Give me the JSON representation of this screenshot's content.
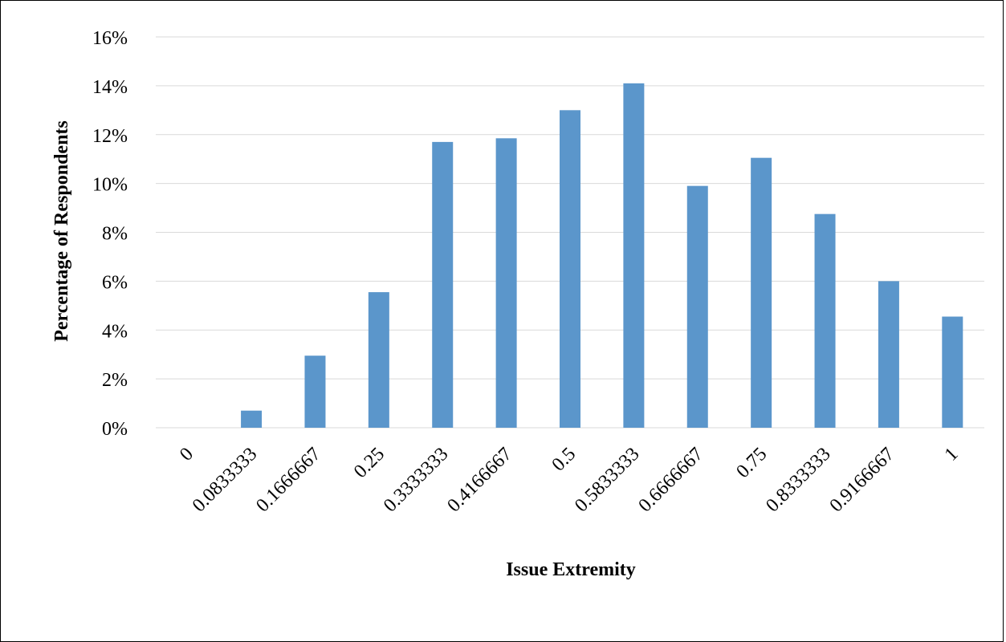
{
  "chart_data": {
    "type": "bar",
    "categories": [
      "0",
      "0.0833333",
      "0.1666667",
      "0.25",
      "0.3333333",
      "0.4166667",
      "0.5",
      "0.5833333",
      "0.6666667",
      "0.75",
      "0.8333333",
      "0.9166667",
      "1"
    ],
    "values": [
      0.0,
      0.7,
      2.95,
      5.55,
      11.7,
      11.85,
      13.0,
      14.1,
      9.9,
      11.05,
      8.75,
      6.0,
      4.55
    ],
    "title": "",
    "xlabel": "Issue Extremity",
    "ylabel": "Percentage of Respondents",
    "ylim": [
      0,
      16
    ],
    "yticks": [
      "0%",
      "2%",
      "4%",
      "6%",
      "8%",
      "10%",
      "12%",
      "14%",
      "16%"
    ],
    "grid": "horizontal",
    "legend": "none",
    "bar_color": "#5b96cb",
    "gridline_color": "#d9d9d9"
  }
}
